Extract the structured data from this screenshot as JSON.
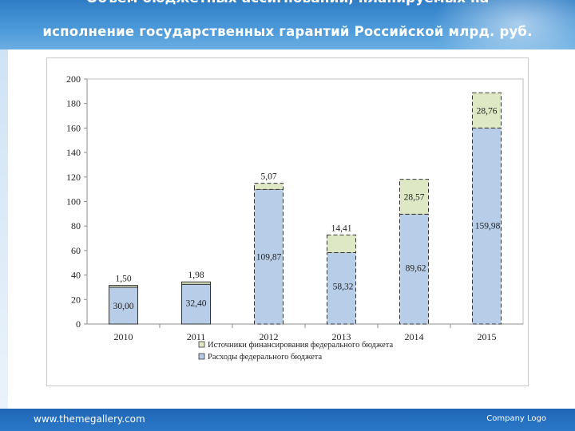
{
  "slide": {
    "title_line1": "Объем бюджетных ассигнований, планируемых на",
    "title_line2": "исполнение государственных гарантий Российской млрд. руб.",
    "footer_url": "www.themegallery.com",
    "footer_logo": "Company Logo"
  },
  "chart_data": {
    "type": "bar",
    "stacked": true,
    "categories": [
      "2010",
      "2011",
      "2012",
      "2013",
      "2014",
      "2015"
    ],
    "series": [
      {
        "name": "Расходы федерального бюджета",
        "values": [
          30.0,
          32.4,
          109.87,
          58.32,
          89.62,
          159.98
        ],
        "labels": [
          "30,00",
          "32,40",
          "109,87",
          "58,32",
          "89,62",
          "159,98"
        ],
        "color": "#b8cde8"
      },
      {
        "name": "Источники финансирования федерального бюджета",
        "values": [
          1.5,
          1.98,
          5.07,
          14.41,
          28.57,
          28.76
        ],
        "labels": [
          "1,50",
          "1,98",
          "5,07",
          "14,41",
          "28,57",
          "28,76"
        ],
        "color": "#dfe8c4"
      }
    ],
    "ylim": [
      0,
      200
    ],
    "yticks": [
      0,
      20,
      40,
      60,
      80,
      100,
      120,
      140,
      160,
      180,
      200
    ],
    "dashed_from_index": 2,
    "grid": false,
    "legend_position": "bottom",
    "legend_order": [
      1,
      0
    ]
  }
}
